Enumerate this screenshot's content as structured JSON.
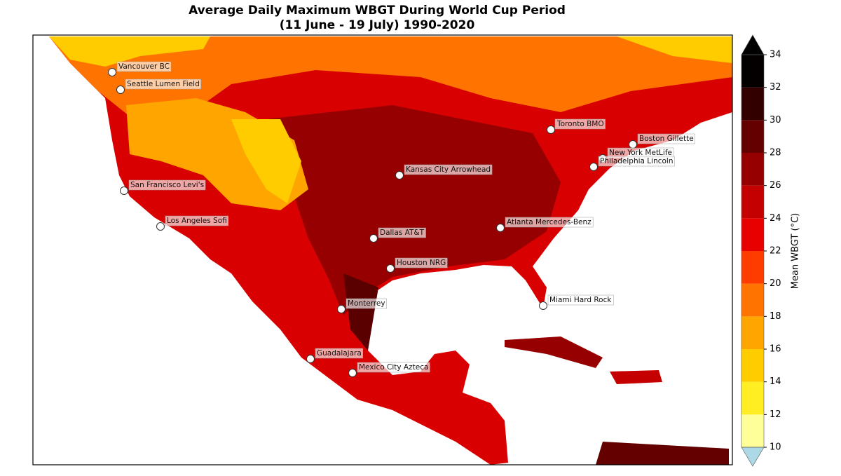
{
  "title": "Average Daily Maximum WBGT During World Cup Period",
  "subtitle": "(11 June - 19 July) 1990-2020",
  "cities": [
    {
      "label": "Vancouver BC"
    },
    {
      "label": "Seattle Lumen Field"
    },
    {
      "label": "Toronto BMO"
    },
    {
      "label": "Boston Gillette"
    },
    {
      "label": "New York MetLife"
    },
    {
      "label": "Philadelphia Lincoln"
    },
    {
      "label": "Kansas City Arrowhead"
    },
    {
      "label": "San Francisco Levi's"
    },
    {
      "label": "Los Angeles Sofi"
    },
    {
      "label": "Atlanta Mercedes-Benz"
    },
    {
      "label": "Dallas AT&T"
    },
    {
      "label": "Houston NRG"
    },
    {
      "label": "Miami Hard Rock"
    },
    {
      "label": "Monterrey"
    },
    {
      "label": "Guadalajara"
    },
    {
      "label": "Mexico City Azteca"
    }
  ],
  "colorbar": {
    "label": "Mean WBGT (°C)",
    "ticks": [
      10,
      12,
      14,
      16,
      18,
      20,
      22,
      24,
      26,
      28,
      30,
      32,
      34
    ],
    "colors": [
      "#ffff99",
      "#ffee22",
      "#ffcc00",
      "#ffa500",
      "#ff7400",
      "#ff3c00",
      "#e80000",
      "#c40000",
      "#960000",
      "#640000",
      "#330000",
      "#050000"
    ],
    "under_color": "#add8e6",
    "over_color": "#000000"
  }
}
